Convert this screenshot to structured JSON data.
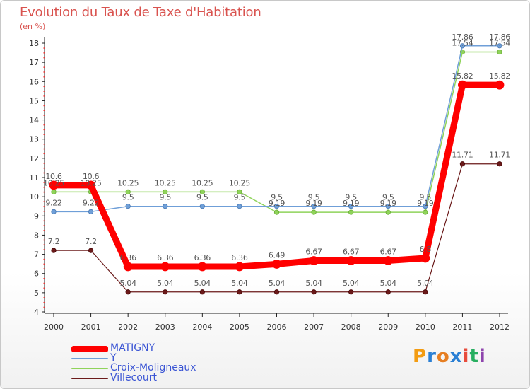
{
  "title": "Evolution du Taux de Taxe d'Habitation",
  "subtitle": "(en %)",
  "logo": {
    "letters": [
      "P",
      "r",
      "o",
      "x",
      "i",
      "t",
      "i"
    ],
    "colors": [
      "#f39c12",
      "#2a7fd4",
      "#e67e22",
      "#2a7fd4",
      "#e74c3c",
      "#27ae60",
      "#8e44ad"
    ]
  },
  "chart_data": {
    "type": "line",
    "categories": [
      "2000",
      "2001",
      "2002",
      "2003",
      "2004",
      "2005",
      "2006",
      "2007",
      "2008",
      "2009",
      "2010",
      "2011",
      "2012"
    ],
    "yticks": [
      "4",
      "5",
      "6",
      "7",
      "8",
      "9",
      "10",
      "11",
      "12",
      "13",
      "14",
      "15",
      "16",
      "17",
      "18"
    ],
    "ylim": [
      4,
      18
    ],
    "grid": false,
    "legend_position": "bottom-left",
    "series": [
      {
        "name": "MATIGNY",
        "color": "#ff0000",
        "values": [
          10.6,
          10.6,
          6.36,
          6.36,
          6.36,
          6.36,
          6.49,
          6.67,
          6.67,
          6.67,
          6.8,
          15.82,
          15.82
        ],
        "labels": [
          "10.6",
          "10.6",
          "6.36",
          "6.36",
          "6.36",
          "6.36",
          "6.49",
          "6.67",
          "6.67",
          "6.67",
          "6.8",
          "15.82",
          "15.82"
        ]
      },
      {
        "name": "Y",
        "color": "#6f9fd8",
        "values": [
          9.22,
          9.22,
          9.5,
          9.5,
          9.5,
          9.5,
          9.5,
          9.5,
          9.5,
          9.5,
          9.5,
          17.86,
          17.86
        ],
        "labels": [
          "9.22",
          "9.22",
          "9.5",
          "9.5",
          "9.5",
          "9.5",
          "9.5",
          "9.5",
          "9.5",
          "9.5",
          "9.5",
          "17.86",
          "17.86"
        ]
      },
      {
        "name": "Croix-Moligneaux",
        "color": "#8fd35a",
        "values": [
          10.25,
          10.25,
          10.25,
          10.25,
          10.25,
          10.25,
          9.19,
          9.19,
          9.19,
          9.19,
          9.19,
          17.54,
          17.54
        ],
        "labels": [
          "10.25",
          "10.25",
          "10.25",
          "10.25",
          "10.25",
          "10.25",
          "9.19",
          "9.19",
          "9.19",
          "9.19",
          "9.19",
          "17.54",
          "17.54"
        ]
      },
      {
        "name": "Villecourt",
        "color": "#6b1a1a",
        "values": [
          7.2,
          7.2,
          5.04,
          5.04,
          5.04,
          5.04,
          5.04,
          5.04,
          5.04,
          5.04,
          5.04,
          11.71,
          11.71
        ],
        "labels": [
          "7.2",
          "7.2",
          "5.04",
          "5.04",
          "5.04",
          "5.04",
          "5.04",
          "5.04",
          "5.04",
          "5.04",
          "5.04",
          "11.71",
          "11.71"
        ]
      }
    ]
  }
}
